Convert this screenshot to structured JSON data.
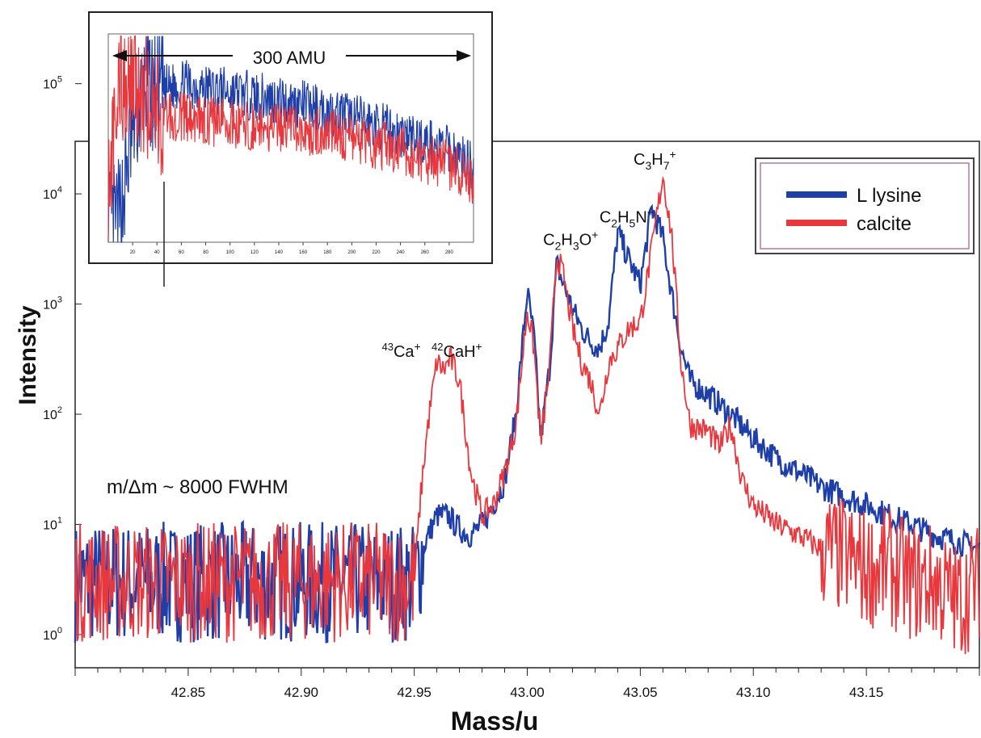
{
  "chart_data": [
    {
      "type": "line",
      "xlabel": "Mass/u",
      "ylabel": "Intensity",
      "y_scale": "log",
      "xlim": [
        42.8,
        43.2
      ],
      "ylim": [
        0.5,
        30000
      ],
      "x_ticks": [
        "42.85",
        "42.90",
        "42.95",
        "43.00",
        "43.05",
        "43.10",
        "43.15"
      ],
      "y_ticks": [
        {
          "base": "10",
          "exp": "0"
        },
        {
          "base": "10",
          "exp": "1"
        },
        {
          "base": "10",
          "exp": "2"
        },
        {
          "base": "10",
          "exp": "3"
        },
        {
          "base": "10",
          "exp": "4"
        },
        {
          "base": "10",
          "exp": "5"
        }
      ],
      "legend_position": "top-right",
      "resolution_note": "m/Δm ~ 8000 FWHM",
      "series": [
        {
          "name": "L lysine",
          "color": "#1f3fa8",
          "x": [
            42.8,
            42.81,
            42.82,
            42.83,
            42.84,
            42.85,
            42.86,
            42.87,
            42.88,
            42.89,
            42.9,
            42.91,
            42.92,
            42.93,
            42.94,
            42.95,
            42.955,
            42.96,
            42.965,
            42.97,
            42.975,
            42.98,
            42.985,
            42.99,
            42.995,
            43.0,
            43.003,
            43.006,
            43.01,
            43.013,
            43.016,
            43.02,
            43.024,
            43.028,
            43.032,
            43.036,
            43.04,
            43.045,
            43.05,
            43.055,
            43.06,
            43.064,
            43.068,
            43.072,
            43.08,
            43.09,
            43.1,
            43.11,
            43.12,
            43.13,
            43.14,
            43.15,
            43.16,
            43.17,
            43.18,
            43.19,
            43.2
          ],
          "y": [
            3,
            3,
            3,
            3,
            3,
            3,
            3,
            3,
            3,
            3,
            3,
            3,
            3,
            3,
            3,
            3,
            7,
            12,
            12,
            9,
            8,
            10,
            15,
            25,
            100,
            1300,
            500,
            60,
            280,
            2300,
            1500,
            900,
            600,
            450,
            400,
            700,
            4500,
            2500,
            1500,
            7500,
            4000,
            1200,
            400,
            200,
            150,
            100,
            60,
            40,
            30,
            22,
            18,
            15,
            12,
            10,
            8,
            7,
            6
          ]
        },
        {
          "name": "calcite",
          "color": "#e8383d",
          "x": [
            42.8,
            42.81,
            42.82,
            42.83,
            42.84,
            42.85,
            42.86,
            42.87,
            42.88,
            42.89,
            42.9,
            42.91,
            42.92,
            42.93,
            42.94,
            42.95,
            42.953,
            42.956,
            42.96,
            42.963,
            42.966,
            42.97,
            42.975,
            42.98,
            42.985,
            42.99,
            42.995,
            43.0,
            43.003,
            43.006,
            43.01,
            43.013,
            43.016,
            43.02,
            43.024,
            43.028,
            43.032,
            43.036,
            43.04,
            43.045,
            43.05,
            43.055,
            43.06,
            43.064,
            43.068,
            43.072,
            43.08,
            43.085,
            43.09,
            43.095,
            43.1,
            43.11,
            43.12,
            43.13,
            43.14,
            43.15,
            43.16,
            43.17,
            43.18,
            43.19,
            43.2
          ],
          "y": [
            3,
            3,
            3,
            3,
            3,
            3,
            3,
            3,
            3,
            3,
            3,
            3,
            3,
            3,
            3,
            3,
            20,
            80,
            300,
            250,
            320,
            200,
            30,
            12,
            15,
            30,
            80,
            900,
            400,
            55,
            280,
            2800,
            1800,
            600,
            300,
            200,
            100,
            300,
            400,
            600,
            700,
            3000,
            15000,
            4000,
            300,
            80,
            70,
            50,
            80,
            25,
            15,
            10,
            8,
            6,
            5,
            4,
            4,
            3,
            3,
            2,
            3
          ]
        }
      ],
      "annotations": [
        {
          "id": "ca43",
          "pre": "43",
          "main": "Ca",
          "ion": "+",
          "x": 42.96,
          "y": 320
        },
        {
          "id": "cah42",
          "pre": "42",
          "main": "CaH",
          "ion": "+",
          "x": 42.966,
          "y": 320
        },
        {
          "id": "c2h3o",
          "main": "C",
          "sub1": "2",
          "mid1": "H",
          "sub2": "3",
          "mid2": "O",
          "ion": "+",
          "x": 43.021,
          "y": 2800
        },
        {
          "id": "c2h5n",
          "main": "C",
          "sub1": "2",
          "mid1": "H",
          "sub2": "5",
          "mid2": "N",
          "ion": "+",
          "x": 43.045,
          "y": 4500
        },
        {
          "id": "c3h7",
          "main": "C",
          "sub1": "3",
          "mid1": "H",
          "sub2": "7",
          "ion": "+",
          "x": 43.06,
          "y": 15000
        }
      ]
    },
    {
      "type": "line",
      "inset": true,
      "span_label": "300 AMU",
      "xlim": [
        0,
        300
      ],
      "x_ticks": [
        "20",
        "40",
        "60",
        "80",
        "100",
        "120",
        "140",
        "160",
        "180",
        "200",
        "220",
        "240",
        "260",
        "280"
      ],
      "series": [
        {
          "name": "L lysine",
          "color": "#1f3fa8",
          "x": [
            0,
            10,
            20,
            30,
            40,
            60,
            80,
            100,
            120,
            140,
            160,
            180,
            200,
            220,
            240,
            260,
            280,
            300
          ],
          "y": [
            0.05,
            0.12,
            0.55,
            0.75,
            0.72,
            0.76,
            0.74,
            0.72,
            0.7,
            0.68,
            0.66,
            0.63,
            0.6,
            0.56,
            0.52,
            0.48,
            0.44,
            0.36
          ]
        },
        {
          "name": "calcite",
          "color": "#e8383d",
          "x": [
            0,
            10,
            20,
            30,
            40,
            60,
            80,
            100,
            120,
            140,
            160,
            180,
            200,
            220,
            240,
            260,
            280,
            300
          ],
          "y": [
            0.3,
            0.75,
            0.8,
            0.7,
            0.62,
            0.6,
            0.58,
            0.57,
            0.56,
            0.55,
            0.54,
            0.52,
            0.5,
            0.47,
            0.44,
            0.4,
            0.37,
            0.3
          ]
        }
      ]
    }
  ]
}
